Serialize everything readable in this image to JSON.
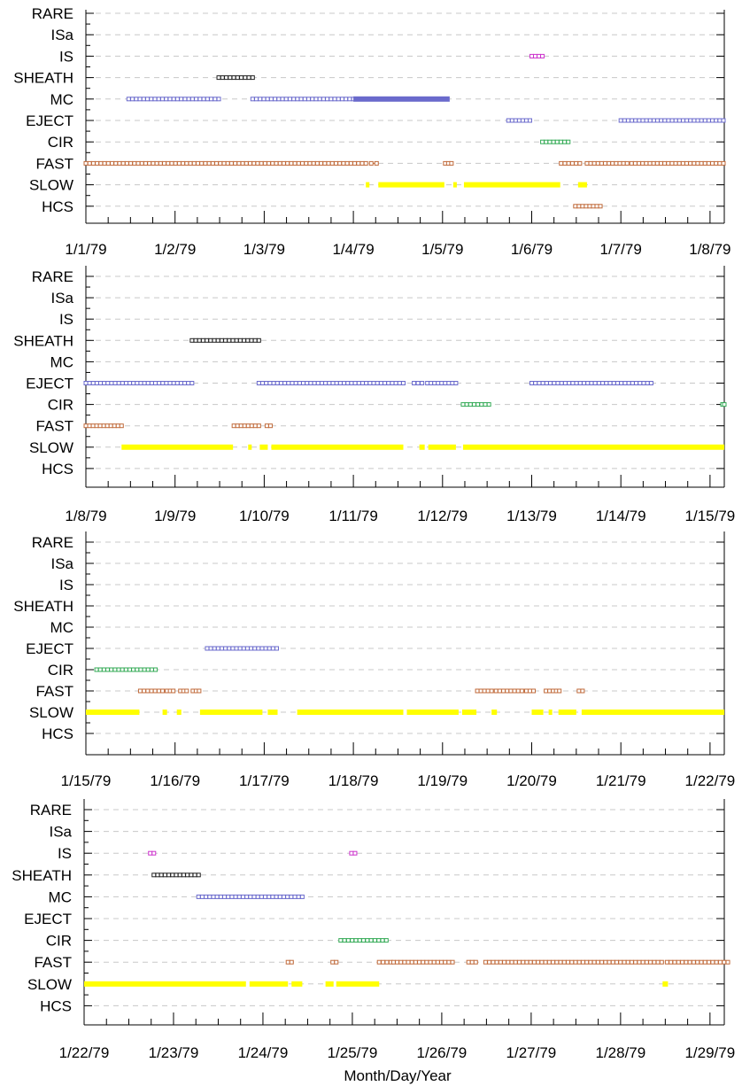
{
  "chart_data": {
    "type": "timeline",
    "xlabel": "Month/Day/Year",
    "categories": [
      "RARE",
      "ISa",
      "IS",
      "SHEATH",
      "MC",
      "EJECT",
      "CIR",
      "FAST",
      "SLOW",
      "HCS"
    ],
    "style": {
      "grid": "dashed-horizontal",
      "colors": {
        "IS": "#cc33cc",
        "SHEATH": "#222222",
        "MC": "#6a6acc",
        "EJECT": "#6a6acc",
        "CIR": "#33aa55",
        "FAST": "#c06a3a",
        "SLOW": "#ffff00",
        "HCS": "#c06a3a"
      }
    },
    "panels": [
      {
        "xticks": [
          "1/1/79",
          "1/2/79",
          "1/3/79",
          "1/4/79",
          "1/5/79",
          "1/6/79",
          "1/7/79",
          "1/8/79"
        ],
        "series": [
          {
            "cat": "IS",
            "style": "box",
            "segments": [
              [
                5.0,
                5.12
              ]
            ]
          },
          {
            "cat": "SHEATH",
            "style": "box",
            "segments": [
              [
                1.49,
                1.87
              ]
            ]
          },
          {
            "cat": "MC",
            "style": "box",
            "segments": [
              [
                0.48,
                1.49
              ],
              [
                1.87,
                3.0
              ]
            ]
          },
          {
            "cat": "MC",
            "style": "solid",
            "segments": [
              [
                3.0,
                4.08
              ]
            ]
          },
          {
            "cat": "EJECT",
            "style": "box",
            "segments": [
              [
                4.74,
                4.98
              ],
              [
                6.0,
                7.15
              ]
            ]
          },
          {
            "cat": "CIR",
            "style": "box",
            "segments": [
              [
                5.12,
                5.41
              ]
            ]
          },
          {
            "cat": "FAST",
            "style": "box",
            "segments": [
              [
                0.0,
                3.14
              ],
              [
                3.2,
                3.26
              ],
              [
                4.03,
                4.1
              ],
              [
                5.33,
                5.54
              ],
              [
                5.62,
                6.07
              ],
              [
                6.12,
                7.15
              ]
            ]
          },
          {
            "cat": "SLOW",
            "style": "solid",
            "segments": [
              [
                3.14,
                3.18
              ],
              [
                3.28,
                4.02
              ],
              [
                4.12,
                4.16
              ],
              [
                4.24,
                5.32
              ],
              [
                5.52,
                5.62
              ]
            ]
          },
          {
            "cat": "HCS",
            "style": "box",
            "segments": [
              [
                5.49,
                5.77
              ]
            ]
          }
        ]
      },
      {
        "xticks": [
          "1/8/79",
          "1/9/79",
          "1/10/79",
          "1/11/79",
          "1/12/79",
          "1/13/79",
          "1/14/79",
          "1/15/79"
        ],
        "series": [
          {
            "cat": "SHEATH",
            "style": "box",
            "segments": [
              [
                1.19,
                1.94
              ]
            ]
          },
          {
            "cat": "EJECT",
            "style": "box",
            "segments": [
              [
                0.0,
                1.19
              ],
              [
                1.94,
                3.56
              ],
              [
                3.68,
                3.77
              ],
              [
                3.83,
                4.15
              ],
              [
                5.0,
                6.34
              ]
            ]
          },
          {
            "cat": "CIR",
            "style": "box",
            "segments": [
              [
                4.23,
                4.52
              ],
              [
                7.14,
                7.16
              ]
            ]
          },
          {
            "cat": "FAST",
            "style": "box",
            "segments": [
              [
                0.0,
                0.4
              ],
              [
                1.66,
                1.82
              ],
              [
                1.86,
                1.94
              ],
              [
                2.03,
                2.07
              ]
            ]
          },
          {
            "cat": "SLOW",
            "style": "solid",
            "segments": [
              [
                0.4,
                1.65
              ],
              [
                1.82,
                1.86
              ],
              [
                1.95,
                2.04
              ],
              [
                2.08,
                3.56
              ],
              [
                3.74,
                3.8
              ],
              [
                3.84,
                4.15
              ],
              [
                4.23,
                7.16
              ]
            ]
          }
        ]
      },
      {
        "xticks": [
          "1/15/79",
          "1/16/79",
          "1/17/79",
          "1/18/79",
          "1/19/79",
          "1/20/79",
          "1/21/79",
          "1/22/79"
        ],
        "series": [
          {
            "cat": "EJECT",
            "style": "box",
            "segments": [
              [
                1.36,
                2.14
              ]
            ]
          },
          {
            "cat": "CIR",
            "style": "box",
            "segments": [
              [
                0.12,
                0.78
              ]
            ]
          },
          {
            "cat": "FAST",
            "style": "box",
            "segments": [
              [
                0.61,
                0.86
              ],
              [
                0.91,
                0.98
              ],
              [
                1.06,
                1.13
              ],
              [
                1.2,
                1.27
              ],
              [
                4.39,
                4.55
              ],
              [
                4.6,
                4.89
              ],
              [
                4.94,
                5.02
              ],
              [
                5.16,
                5.2
              ],
              [
                5.24,
                5.31
              ],
              [
                5.53,
                5.57
              ]
            ]
          },
          {
            "cat": "SLOW",
            "style": "solid",
            "segments": [
              [
                0.0,
                0.6
              ],
              [
                0.86,
                0.91
              ],
              [
                1.02,
                1.07
              ],
              [
                1.28,
                1.98
              ],
              [
                2.04,
                2.15
              ],
              [
                2.37,
                3.56
              ],
              [
                3.6,
                4.18
              ],
              [
                4.22,
                4.38
              ],
              [
                4.55,
                4.61
              ],
              [
                5.0,
                5.13
              ],
              [
                5.19,
                5.23
              ],
              [
                5.3,
                5.5
              ],
              [
                5.56,
                7.16
              ]
            ]
          }
        ]
      },
      {
        "xticks": [
          "1/22/79",
          "1/23/79",
          "1/24/79",
          "1/25/79",
          "1/26/79",
          "1/27/79",
          "1/28/79",
          "1/29/79"
        ],
        "series": [
          {
            "cat": "IS",
            "style": "box",
            "segments": [
              [
                0.74,
                0.78
              ],
              [
                2.99,
                3.03
              ]
            ]
          },
          {
            "cat": "SHEATH",
            "style": "box",
            "segments": [
              [
                0.78,
                1.28
              ]
            ]
          },
          {
            "cat": "MC",
            "style": "box",
            "segments": [
              [
                1.28,
                2.44
              ]
            ]
          },
          {
            "cat": "CIR",
            "style": "box",
            "segments": [
              [
                2.87,
                3.38
              ]
            ]
          },
          {
            "cat": "FAST",
            "style": "box",
            "segments": [
              [
                2.28,
                2.32
              ],
              [
                2.78,
                2.82
              ],
              [
                3.3,
                3.43
              ],
              [
                3.46,
                4.12
              ],
              [
                4.3,
                4.38
              ],
              [
                4.49,
                6.46
              ],
              [
                6.52,
                7.2
              ]
            ]
          },
          {
            "cat": "SLOW",
            "style": "solid",
            "segments": [
              [
                0.0,
                1.81
              ],
              [
                1.85,
                2.28
              ],
              [
                2.32,
                2.44
              ],
              [
                2.7,
                2.79
              ],
              [
                2.82,
                3.3
              ],
              [
                6.47,
                6.53
              ]
            ]
          }
        ]
      }
    ]
  }
}
